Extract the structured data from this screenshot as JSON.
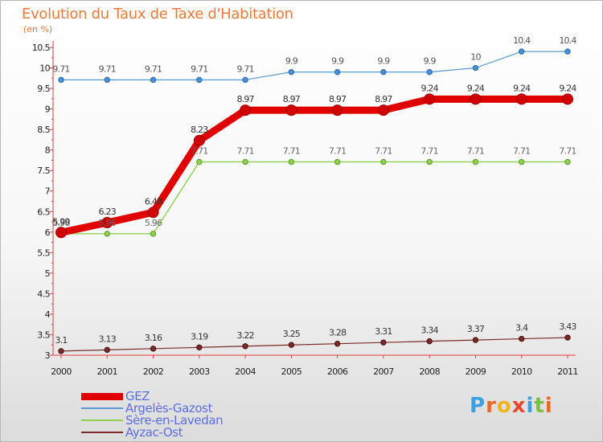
{
  "title": "Evolution du Taux de Taxe d'Habitation",
  "subtitle": "(en %)",
  "logo": {
    "text": "Proxiti",
    "letter_colors": [
      "#3aa0e0",
      "#e86a2a",
      "#f3b21e",
      "#e2472f",
      "#3aa0e0",
      "#7ac043",
      "#e86a2a"
    ]
  },
  "chart_data": {
    "type": "line",
    "title": "Evolution du Taux de Taxe d'Habitation",
    "ylabel": "(en %)",
    "xlabel": "",
    "x": [
      "2000",
      "2001",
      "2002",
      "2003",
      "2004",
      "2005",
      "2006",
      "2007",
      "2008",
      "2009",
      "2010",
      "2011"
    ],
    "ylim": [
      3,
      10.5
    ],
    "yticks": [
      "3",
      "3.5",
      "4",
      "4.5",
      "5",
      "5.5",
      "6",
      "6.5",
      "7",
      "7.5",
      "8",
      "8.5",
      "9",
      "9.5",
      "10",
      "10.5"
    ],
    "grid": false,
    "legend_position": "bottom-left",
    "series": [
      {
        "name": "GEZ",
        "color": "#e00000",
        "values": [
          5.99,
          6.23,
          6.48,
          8.23,
          8.97,
          8.97,
          8.97,
          8.97,
          9.24,
          9.24,
          9.24,
          9.24
        ],
        "labels": [
          "5.99",
          "6.23",
          "6.48",
          "8.23",
          "8.97",
          "8.97",
          "8.97",
          "8.97",
          "9.24",
          "9.24",
          "9.24",
          "9.24"
        ]
      },
      {
        "name": "Argelès-Gazost",
        "color": "#5b9bd5",
        "values": [
          9.71,
          9.71,
          9.71,
          9.71,
          9.71,
          9.9,
          9.9,
          9.9,
          9.9,
          10,
          10.4,
          10.4
        ],
        "labels": [
          "9.71",
          "9.71",
          "9.71",
          "9.71",
          "9.71",
          "9.9",
          "9.9",
          "9.9",
          "9.9",
          "10",
          "10.4",
          "10.4"
        ]
      },
      {
        "name": "Sère-en-Lavedan",
        "color": "#8fd14f",
        "values": [
          5.96,
          5.96,
          5.96,
          7.71,
          7.71,
          7.71,
          7.71,
          7.71,
          7.71,
          7.71,
          7.71,
          7.71
        ],
        "labels": [
          "5.96",
          "5.96",
          "5.96",
          "7.71",
          "7.71",
          "7.71",
          "7.71",
          "7.71",
          "7.71",
          "7.71",
          "7.71",
          "7.71"
        ]
      },
      {
        "name": "Ayzac-Ost",
        "color": "#7a2a2a",
        "values": [
          3.1,
          3.13,
          3.16,
          3.19,
          3.22,
          3.25,
          3.28,
          3.31,
          3.34,
          3.37,
          3.4,
          3.43
        ],
        "labels": [
          "3.1",
          "3.13",
          "3.16",
          "3.19",
          "3.22",
          "3.25",
          "3.28",
          "3.31",
          "3.34",
          "3.37",
          "3.4",
          "3.43"
        ]
      }
    ]
  }
}
